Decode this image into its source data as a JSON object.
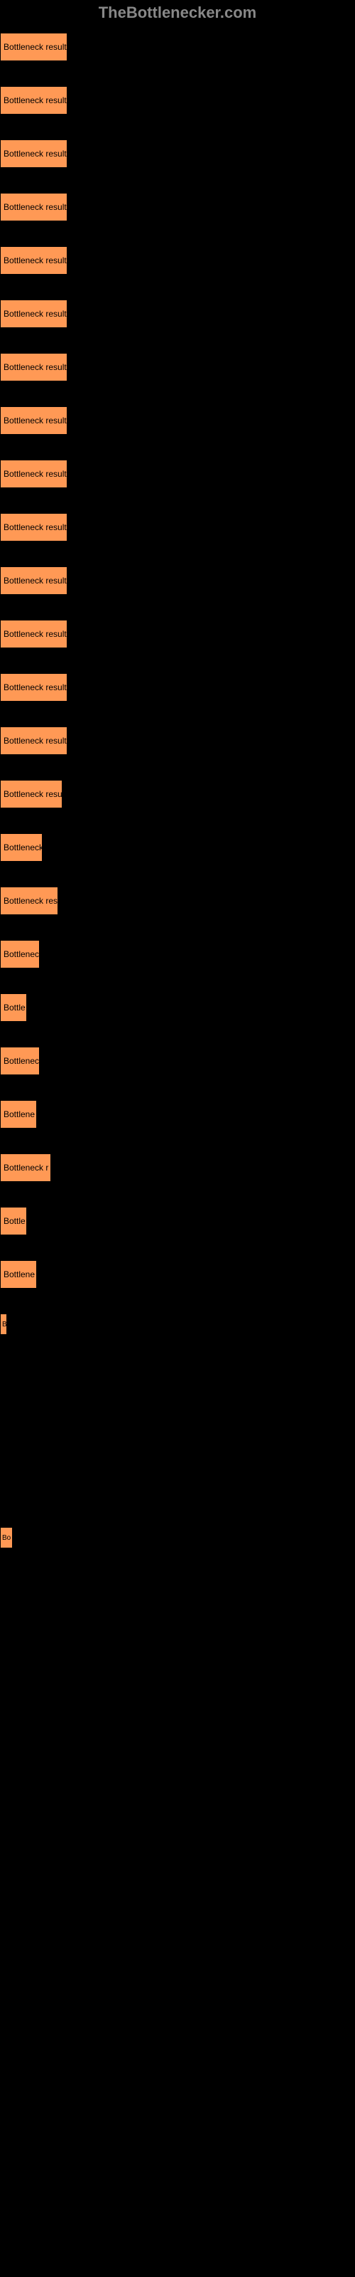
{
  "header": {
    "title": "TheBottlenecker.com"
  },
  "chart": {
    "type": "bar",
    "background_color": "#000000",
    "bar_color": "#ff9955",
    "text_color": "#000000",
    "bars": [
      {
        "label": "Bottleneck result",
        "width": 95
      },
      {
        "label": "Bottleneck result",
        "width": 95
      },
      {
        "label": "Bottleneck result",
        "width": 95
      },
      {
        "label": "Bottleneck result",
        "width": 95
      },
      {
        "label": "Bottleneck result",
        "width": 95
      },
      {
        "label": "Bottleneck result",
        "width": 95
      },
      {
        "label": "Bottleneck result",
        "width": 95
      },
      {
        "label": "Bottleneck result",
        "width": 95
      },
      {
        "label": "Bottleneck result",
        "width": 95
      },
      {
        "label": "Bottleneck result",
        "width": 95
      },
      {
        "label": "Bottleneck result",
        "width": 95
      },
      {
        "label": "Bottleneck result",
        "width": 95
      },
      {
        "label": "Bottleneck result",
        "width": 95
      },
      {
        "label": "Bottleneck result",
        "width": 95
      },
      {
        "label": "Bottleneck resu",
        "width": 88
      },
      {
        "label": "Bottleneck",
        "width": 60
      },
      {
        "label": "Bottleneck res",
        "width": 82
      },
      {
        "label": "Bottlenec",
        "width": 56
      },
      {
        "label": "Bottle",
        "width": 38
      },
      {
        "label": "Bottlenec",
        "width": 56
      },
      {
        "label": "Bottlene",
        "width": 52
      },
      {
        "label": "Bottleneck r",
        "width": 72
      },
      {
        "label": "Bottle",
        "width": 38
      },
      {
        "label": "Bottlene",
        "width": 52
      },
      {
        "label": "B",
        "width": 10
      },
      {
        "label": "",
        "width": 0
      },
      {
        "label": "",
        "width": 0
      },
      {
        "label": "",
        "width": 0
      },
      {
        "label": "Bo",
        "width": 18
      }
    ]
  }
}
